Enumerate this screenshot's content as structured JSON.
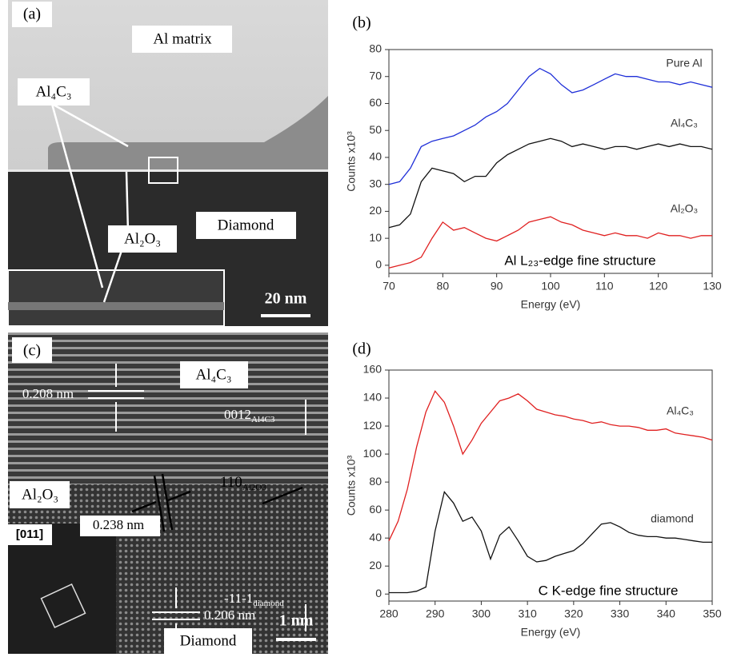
{
  "chart_data": [
    {
      "type": "line",
      "panel_label": "(b)",
      "x_label": "Energy (eV)",
      "y_label": "Counts x10³",
      "annotation": "Al L₂₃-edge fine structure",
      "x": [
        70,
        72,
        74,
        76,
        78,
        80,
        82,
        84,
        86,
        88,
        90,
        92,
        94,
        96,
        98,
        100,
        102,
        104,
        106,
        108,
        110,
        112,
        114,
        116,
        118,
        120,
        122,
        124,
        126,
        128,
        130
      ],
      "xlim": [
        70,
        130
      ],
      "xticks": [
        70,
        80,
        90,
        100,
        110,
        120,
        130
      ],
      "ylim": [
        -3,
        80
      ],
      "yticks": [
        0,
        10,
        20,
        30,
        40,
        50,
        60,
        70,
        80
      ],
      "series": [
        {
          "name": "Pure Al",
          "color": "#1f2fd8",
          "values": [
            30,
            31,
            36,
            44,
            46,
            47,
            48,
            50,
            52,
            55,
            57,
            60,
            65,
            70,
            73,
            71,
            67,
            64,
            65,
            67,
            69,
            71,
            70,
            70,
            69,
            68,
            68,
            67,
            68,
            67,
            66
          ]
        },
        {
          "name": "Al₄C₃",
          "color": "#111111",
          "values": [
            14,
            15,
            19,
            31,
            36,
            35,
            34,
            31,
            33,
            33,
            38,
            41,
            43,
            45,
            46,
            47,
            46,
            44,
            45,
            44,
            43,
            44,
            44,
            43,
            44,
            45,
            44,
            45,
            44,
            44,
            43
          ]
        },
        {
          "name": "Al₂O₃",
          "color": "#e02020",
          "values": [
            -1,
            0,
            1,
            3,
            10,
            16,
            13,
            14,
            12,
            10,
            9,
            11,
            13,
            16,
            17,
            18,
            16,
            15,
            13,
            12,
            11,
            12,
            11,
            11,
            10,
            12,
            11,
            11,
            10,
            11,
            11
          ]
        }
      ]
    },
    {
      "type": "line",
      "panel_label": "(d)",
      "x_label": "Energy (eV)",
      "y_label": "Counts x10³",
      "annotation": "C K-edge fine structure",
      "x": [
        280,
        282,
        284,
        286,
        288,
        290,
        292,
        294,
        296,
        298,
        300,
        302,
        304,
        306,
        308,
        310,
        312,
        314,
        316,
        318,
        320,
        322,
        324,
        326,
        328,
        330,
        332,
        334,
        336,
        338,
        340,
        342,
        344,
        346,
        348,
        350
      ],
      "xlim": [
        280,
        350
      ],
      "xticks": [
        280,
        290,
        300,
        310,
        320,
        330,
        340,
        350
      ],
      "ylim": [
        -5,
        160
      ],
      "yticks": [
        0,
        20,
        40,
        60,
        80,
        100,
        120,
        140,
        160
      ],
      "series": [
        {
          "name": "Al₄C₃",
          "color": "#e02020",
          "values": [
            38,
            52,
            75,
            105,
            130,
            145,
            137,
            120,
            100,
            110,
            122,
            130,
            138,
            140,
            143,
            138,
            132,
            130,
            128,
            127,
            125,
            124,
            122,
            123,
            121,
            120,
            120,
            119,
            117,
            117,
            118,
            115,
            114,
            113,
            112,
            110
          ]
        },
        {
          "name": "diamond",
          "color": "#111111",
          "values": [
            1,
            1,
            1,
            2,
            5,
            45,
            73,
            65,
            52,
            55,
            45,
            25,
            42,
            48,
            38,
            27,
            23,
            24,
            27,
            29,
            31,
            36,
            43,
            50,
            51,
            48,
            44,
            42,
            41,
            41,
            40,
            40,
            39,
            38,
            37,
            37
          ]
        }
      ]
    }
  ],
  "micrographs": {
    "a": {
      "label": "(a)",
      "matrix": "Al matrix",
      "carbide": "Al₄C₃",
      "diamond": "Diamond",
      "oxide": "Al₂O₃",
      "scale": "20 nm"
    },
    "c": {
      "label": "(c)",
      "carbide": "Al₄C₃",
      "spacing_carbide": "0.208 nm",
      "dir_carbide": "0012",
      "dir_carbide_sub": "Al4C3",
      "oxide": "Al₂O₃",
      "dir_oxide": "110",
      "dir_oxide_sub": "Al2O3",
      "spacing_oxide": "0.238 nm",
      "dir_diamond": "-11-1",
      "dir_diamond_sub": "diamond",
      "spacing_diamond": "0.206 nm",
      "zone": "[011]",
      "scale": "1 nm",
      "diamond": "Diamond"
    }
  }
}
